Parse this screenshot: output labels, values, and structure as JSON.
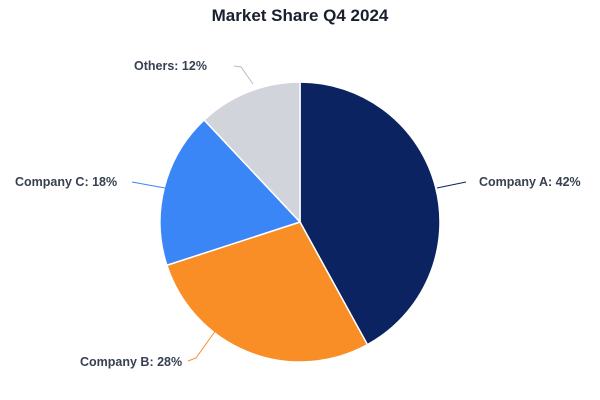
{
  "chart_data": {
    "type": "pie",
    "title": "Market Share Q4 2024",
    "categories": [
      "Company A",
      "Company B",
      "Company C",
      "Others"
    ],
    "values": [
      42,
      28,
      18,
      12
    ],
    "unit": "%",
    "colors": [
      "#0b2361",
      "#f98e26",
      "#3b86f6",
      "#d1d5db"
    ],
    "labels": [
      "Company A: 42%",
      "Company B: 28%",
      "Company C: 18%",
      "Others: 12%"
    ],
    "start_angle": "12 o'clock",
    "direction": "clockwise",
    "legend": "none (external labels with leader lines)"
  },
  "header": {
    "title": "Market Share Q4 2024"
  }
}
